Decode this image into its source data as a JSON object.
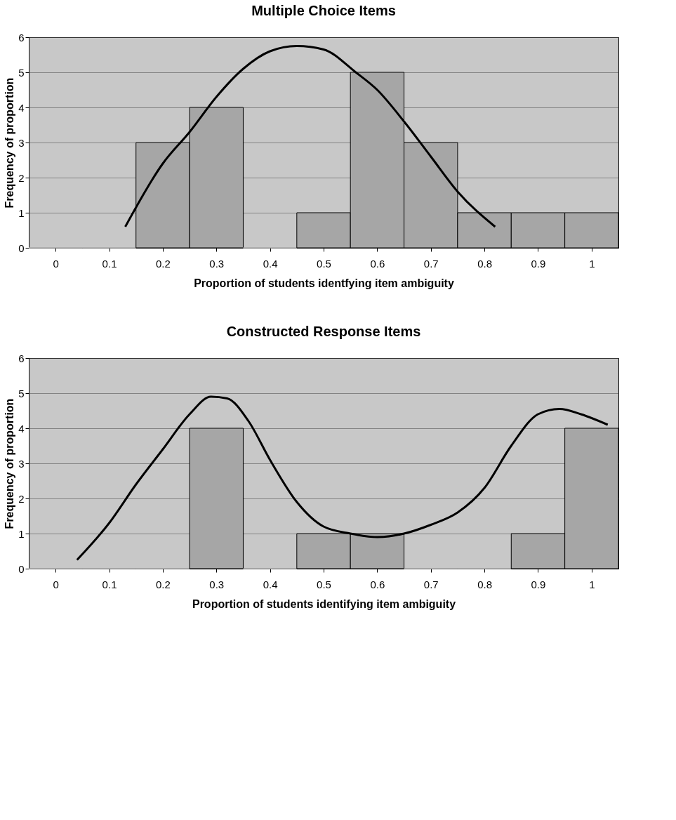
{
  "chart_data": [
    {
      "type": "bar",
      "title": "Multiple Choice Items",
      "xlabel": "Proportion of students identfying item ambiguity",
      "ylabel": "Frequency of proportion",
      "xlim": [
        -0.05,
        1.05
      ],
      "xticks": [
        0,
        0.1,
        0.2,
        0.3,
        0.4,
        0.5,
        0.6,
        0.7,
        0.8,
        0.9,
        1
      ],
      "ylim": [
        0,
        6
      ],
      "yticks": [
        0,
        1,
        2,
        3,
        4,
        5,
        6
      ],
      "grid": "y",
      "series": [
        {
          "color": "#a6a6a6",
          "x": [
            0,
            0.1,
            0.2,
            0.3,
            0.4,
            0.5,
            0.6,
            0.7,
            0.8,
            0.9,
            1
          ],
          "values": [
            0,
            0,
            3,
            4,
            0,
            1,
            5,
            3,
            1,
            1,
            1
          ]
        },
        {
          "type": "line",
          "color": "#000000",
          "x": [
            0.13,
            0.2,
            0.25,
            0.3,
            0.35,
            0.4,
            0.45,
            0.5,
            0.56,
            0.6,
            0.65,
            0.7,
            0.75,
            0.82
          ],
          "values": [
            0.6,
            2.4,
            3.3,
            4.3,
            5.1,
            5.6,
            5.75,
            5.65,
            5.0,
            4.5,
            3.6,
            2.6,
            1.6,
            0.6
          ]
        }
      ]
    },
    {
      "type": "bar",
      "title": "Constructed Response Items",
      "xlabel": "Proportion of students identifying item ambiguity",
      "ylabel": "Frequency of proportion",
      "xlim": [
        -0.05,
        1.05
      ],
      "xticks": [
        0,
        0.1,
        0.2,
        0.3,
        0.4,
        0.5,
        0.6,
        0.7,
        0.8,
        0.9,
        1
      ],
      "ylim": [
        0,
        6
      ],
      "yticks": [
        0,
        1,
        2,
        3,
        4,
        5,
        6
      ],
      "grid": "y",
      "series": [
        {
          "color": "#a6a6a6",
          "x": [
            0,
            0.1,
            0.2,
            0.3,
            0.4,
            0.5,
            0.6,
            0.7,
            0.8,
            0.9,
            1
          ],
          "values": [
            0,
            0,
            0,
            4,
            0,
            1,
            1,
            0,
            0,
            1,
            4
          ]
        },
        {
          "type": "line",
          "color": "#000000",
          "x": [
            0.04,
            0.1,
            0.15,
            0.2,
            0.25,
            0.29,
            0.32,
            0.36,
            0.4,
            0.45,
            0.5,
            0.55,
            0.6,
            0.65,
            0.7,
            0.75,
            0.8,
            0.85,
            0.9,
            0.94,
            0.98,
            1.03
          ],
          "values": [
            0.25,
            1.3,
            2.4,
            3.4,
            4.4,
            4.9,
            4.85,
            4.2,
            3.1,
            1.9,
            1.2,
            1.0,
            0.9,
            1.0,
            1.25,
            1.6,
            2.3,
            3.5,
            4.4,
            4.55,
            4.4,
            4.1
          ]
        }
      ]
    }
  ]
}
